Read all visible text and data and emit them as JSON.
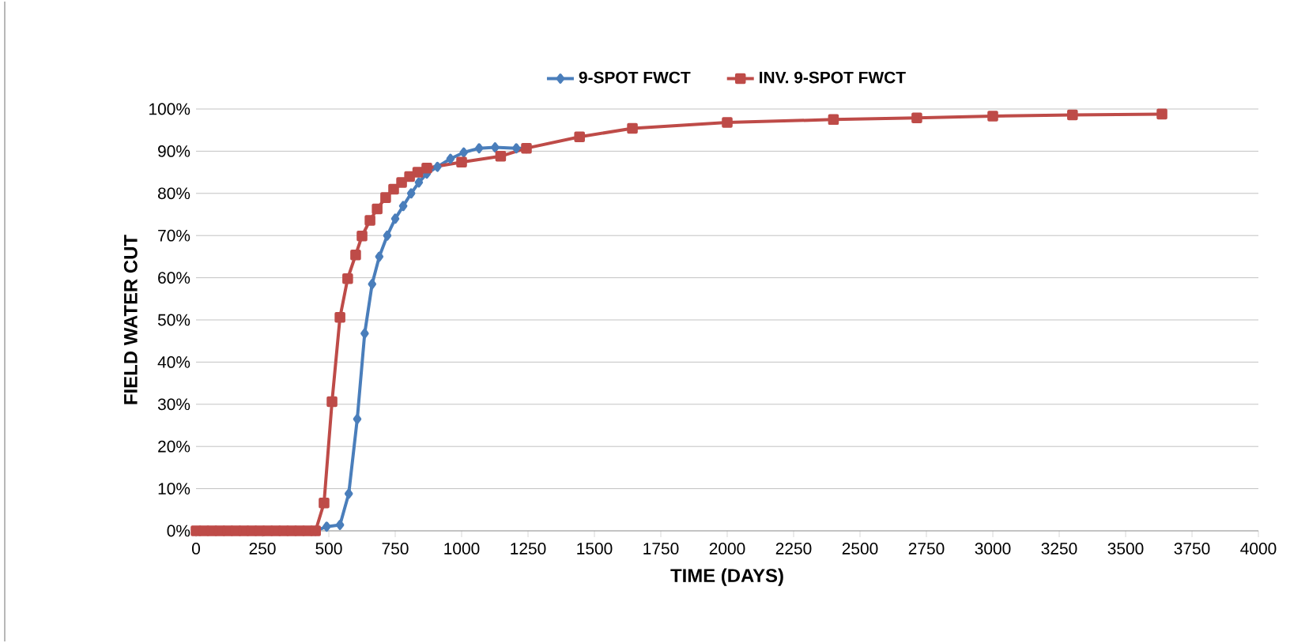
{
  "chart_data": {
    "type": "line",
    "xlabel": "TIME (DAYS)",
    "ylabel": "FIELD WATER CUT",
    "xlim": [
      0,
      4000
    ],
    "xticks": [
      0,
      250,
      500,
      750,
      1000,
      1250,
      1500,
      1750,
      2000,
      2250,
      2500,
      2750,
      3000,
      3250,
      3500,
      3750,
      4000
    ],
    "ylim": [
      0,
      100
    ],
    "yticks": [
      {
        "value": 0,
        "label": "0%"
      },
      {
        "value": 10,
        "label": "10%"
      },
      {
        "value": 20,
        "label": "20%"
      },
      {
        "value": 30,
        "label": "30%"
      },
      {
        "value": 40,
        "label": "40%"
      },
      {
        "value": 50,
        "label": "50%"
      },
      {
        "value": 60,
        "label": "60%"
      },
      {
        "value": 70,
        "label": "70%"
      },
      {
        "value": 80,
        "label": "80%"
      },
      {
        "value": 90,
        "label": "90%"
      },
      {
        "value": 100,
        "label": "100%"
      }
    ],
    "grid": "y",
    "legend": "top",
    "line_style": "solid",
    "series": [
      {
        "name": "9-SPOT FWCT",
        "color": "#4a7ebb",
        "marker": "diamond",
        "x": [
          450,
          492,
          542,
          575,
          607,
          635,
          663,
          690,
          720,
          750,
          780,
          810,
          839,
          869,
          909,
          958,
          1008,
          1066,
          1126,
          1206,
          1244
        ],
        "values": [
          0,
          1,
          1.4,
          8.8,
          26.5,
          46.8,
          58.5,
          65,
          70,
          74,
          77,
          80,
          82.6,
          84.7,
          86.3,
          88.2,
          89.7,
          90.7,
          90.9,
          90.7,
          90.7
        ]
      },
      {
        "name": "INV. 9-SPOT FWCT",
        "color": "#be4b48",
        "marker": "square",
        "x": [
          0,
          30,
          60,
          90,
          120,
          150,
          180,
          210,
          240,
          270,
          300,
          330,
          360,
          390,
          420,
          450,
          482,
          512,
          542,
          571,
          601,
          625,
          655,
          682,
          714,
          744,
          774,
          804,
          835,
          869,
          1000,
          1147,
          1244,
          1444,
          1643,
          2000,
          2400,
          2714,
          3000,
          3300,
          3637
        ],
        "values": [
          0,
          0,
          0,
          0,
          0,
          0,
          0,
          0,
          0,
          0,
          0,
          0,
          0,
          0,
          0,
          0,
          6.6,
          30.6,
          50.6,
          59.8,
          65.4,
          69.9,
          73.6,
          76.3,
          79,
          81,
          82.6,
          84,
          85,
          86,
          87.4,
          88.8,
          90.7,
          93.4,
          95.4,
          96.8,
          97.5,
          97.9,
          98.3,
          98.6,
          98.8
        ]
      }
    ]
  }
}
